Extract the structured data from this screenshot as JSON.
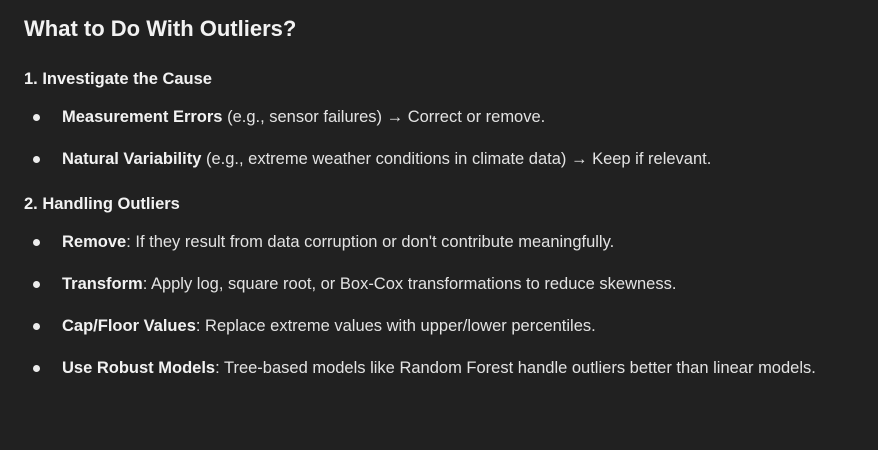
{
  "title": "What to Do With Outliers?",
  "sections": [
    {
      "heading": "1. Investigate the Cause",
      "items": [
        {
          "term": "Measurement Errors",
          "text": " (e.g., sensor failures) → Correct or remove."
        },
        {
          "term": "Natural Variability",
          "text": " (e.g., extreme weather conditions in climate data) → Keep if relevant."
        }
      ]
    },
    {
      "heading": "2. Handling Outliers",
      "items": [
        {
          "term": "Remove",
          "text": ": If they result from data corruption or don't contribute meaningfully."
        },
        {
          "term": "Transform",
          "text": ": Apply log, square root, or Box-Cox transformations to reduce skewness."
        },
        {
          "term": "Cap/Floor Values",
          "text": ": Replace extreme values with upper/lower percentiles."
        },
        {
          "term": "Use Robust Models",
          "text": ": Tree-based models like Random Forest handle outliers better than linear models."
        }
      ]
    }
  ]
}
